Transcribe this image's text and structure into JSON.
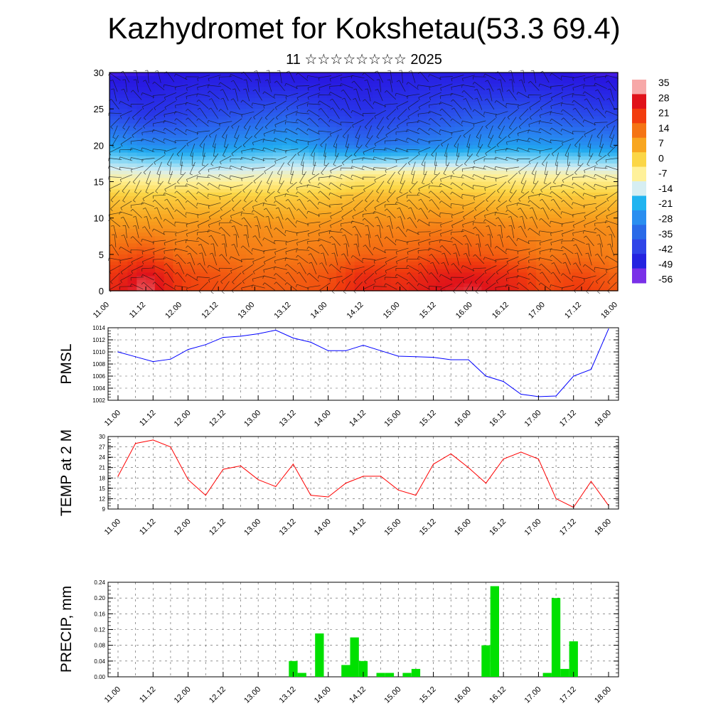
{
  "page": {
    "title": "Kazhydromet for Kokshetau(53.3 69.4)",
    "subtitle": "11 ☆☆☆☆☆☆☆☆ 2025"
  },
  "time_labels": [
    "11.00",
    "11.12",
    "12.00",
    "12.12",
    "13.00",
    "13.12",
    "14.00",
    "14.12",
    "15.00",
    "15.12",
    "16.00",
    "16.12",
    "17.00",
    "17.12",
    "18.00"
  ],
  "chart_data": [
    {
      "type": "heatmap",
      "subtitle": "temperature cross-section with wind barbs",
      "y_ticks": [
        "0",
        "5",
        "10",
        "15",
        "20",
        "25",
        "30"
      ],
      "ylim": [
        0,
        30
      ],
      "colorbar": {
        "labels": [
          "35",
          "28",
          "21",
          "14",
          "7",
          "0",
          "-7",
          "-14",
          "-21",
          "-28",
          "-35",
          "-42",
          "-49",
          "-56"
        ],
        "colors": [
          "#f7a8a8",
          "#e0121a",
          "#f23c0e",
          "#f57414",
          "#f8a620",
          "#fbd646",
          "#fff19a",
          "#d6eef2",
          "#20b4f0",
          "#2a8ef0",
          "#2a6ae8",
          "#2f44e8",
          "#2422e0",
          "#7a30e8"
        ]
      },
      "layers": [
        {
          "height": 30,
          "values": [
            -58,
            -57,
            -56,
            -55,
            -56,
            -57,
            -57,
            -56,
            -55,
            -54,
            -55,
            -56,
            -56,
            -57,
            -58
          ]
        },
        {
          "height": 24,
          "values": [
            -44,
            -48,
            -46,
            -44,
            -42,
            -40,
            -46,
            -48,
            -46,
            -44,
            -42,
            -41,
            -42,
            -44,
            -46
          ]
        },
        {
          "height": 20,
          "values": [
            -30,
            -33,
            -34,
            -32,
            -30,
            -28,
            -34,
            -38,
            -36,
            -34,
            -32,
            -30,
            -31,
            -32,
            -34
          ]
        },
        {
          "height": 16,
          "values": [
            -10,
            -11,
            -12,
            -12,
            -11,
            -10,
            -9,
            -6,
            -6,
            -6,
            -7,
            -8,
            -9,
            -9,
            -10
          ]
        },
        {
          "height": 13,
          "values": [
            2,
            1,
            1,
            1,
            1,
            1,
            2,
            4,
            4,
            4,
            3,
            2,
            2,
            2,
            2
          ]
        },
        {
          "height": 9,
          "values": [
            9,
            9,
            9,
            10,
            10,
            9,
            10,
            11,
            11,
            12,
            12,
            11,
            10,
            10,
            10
          ]
        },
        {
          "height": 5,
          "values": [
            16,
            19,
            14,
            14,
            13,
            13,
            14,
            16,
            16,
            18,
            18,
            16,
            13,
            14,
            12
          ]
        },
        {
          "height": 2,
          "values": [
            22,
            30,
            20,
            18,
            16,
            16,
            18,
            24,
            22,
            26,
            27,
            24,
            18,
            20,
            16
          ]
        },
        {
          "height": 0,
          "values": [
            24,
            32,
            21,
            19,
            17,
            17,
            19,
            26,
            24,
            28,
            30,
            26,
            19,
            22,
            17
          ]
        }
      ]
    },
    {
      "type": "line",
      "ylabel": "PMSL",
      "ylim": [
        1002,
        1014
      ],
      "y_ticks": [
        "1014",
        "1012",
        "1010",
        "1008",
        "1006",
        "1004",
        "1002"
      ],
      "color": "#0000ff",
      "x": [
        0,
        0.25,
        0.5,
        0.75,
        1,
        1.25,
        1.5,
        1.75,
        2,
        2.25,
        2.5,
        2.75,
        3,
        3.25,
        3.5,
        3.75,
        4,
        4.25,
        4.5,
        4.75,
        5,
        5.25,
        5.5,
        5.75,
        6,
        6.25,
        6.5,
        6.75,
        7
      ],
      "series": [
        {
          "values": [
            1010,
            1009.2,
            1008.4,
            1008.8,
            1010.4,
            1011.2,
            1012.4,
            1012.6,
            1013.0,
            1013.6,
            1012.3,
            1011.6,
            1010.2,
            1010.2,
            1011.1,
            1010.2,
            1009.3,
            1009.2,
            1009.1,
            1008.7,
            1008.7,
            1006.0,
            1005.1,
            1003.0,
            1002.6,
            1002.7,
            1006.0,
            1007.1,
            1013.8
          ]
        }
      ]
    },
    {
      "type": "line",
      "ylabel": "TEMP at 2 M",
      "ylim": [
        9,
        30
      ],
      "y_ticks": [
        "30",
        "27",
        "24",
        "21",
        "18",
        "15",
        "12",
        "9"
      ],
      "color": "#ff0000",
      "x": [
        0,
        0.25,
        0.5,
        0.75,
        1,
        1.25,
        1.5,
        1.75,
        2,
        2.25,
        2.5,
        2.75,
        3,
        3.25,
        3.5,
        3.75,
        4,
        4.25,
        4.5,
        4.75,
        5,
        5.25,
        5.5,
        5.75,
        6,
        6.25,
        6.5,
        6.75,
        7
      ],
      "series": [
        {
          "values": [
            18.5,
            28.0,
            29.0,
            27.0,
            17.5,
            13.0,
            20.5,
            21.5,
            17.5,
            15.5,
            22.0,
            13.0,
            12.5,
            16.5,
            18.5,
            18.5,
            14.5,
            13.0,
            22.0,
            25.0,
            21.0,
            16.5,
            23.5,
            25.5,
            23.5,
            12.0,
            9.5,
            17.0,
            10.0
          ]
        }
      ]
    },
    {
      "type": "bar",
      "ylabel": "PRECIP, mm",
      "ylim": [
        0,
        0.24
      ],
      "y_ticks": [
        "0.24",
        "0.20",
        "0.16",
        "0.12",
        "0.08",
        "0.04",
        "0.00"
      ],
      "color": "#00e000",
      "x": [
        2.5,
        2.625,
        2.875,
        3.25,
        3.375,
        3.5,
        3.75,
        3.875,
        4.125,
        4.25,
        5.25,
        5.375,
        6.125,
        6.25,
        6.375,
        6.5
      ],
      "series": [
        {
          "values": [
            0.04,
            0.01,
            0.11,
            0.03,
            0.1,
            0.04,
            0.01,
            0.01,
            0.01,
            0.02,
            0.08,
            0.23,
            0.01,
            0.2,
            0.02,
            0.09
          ]
        }
      ]
    }
  ]
}
